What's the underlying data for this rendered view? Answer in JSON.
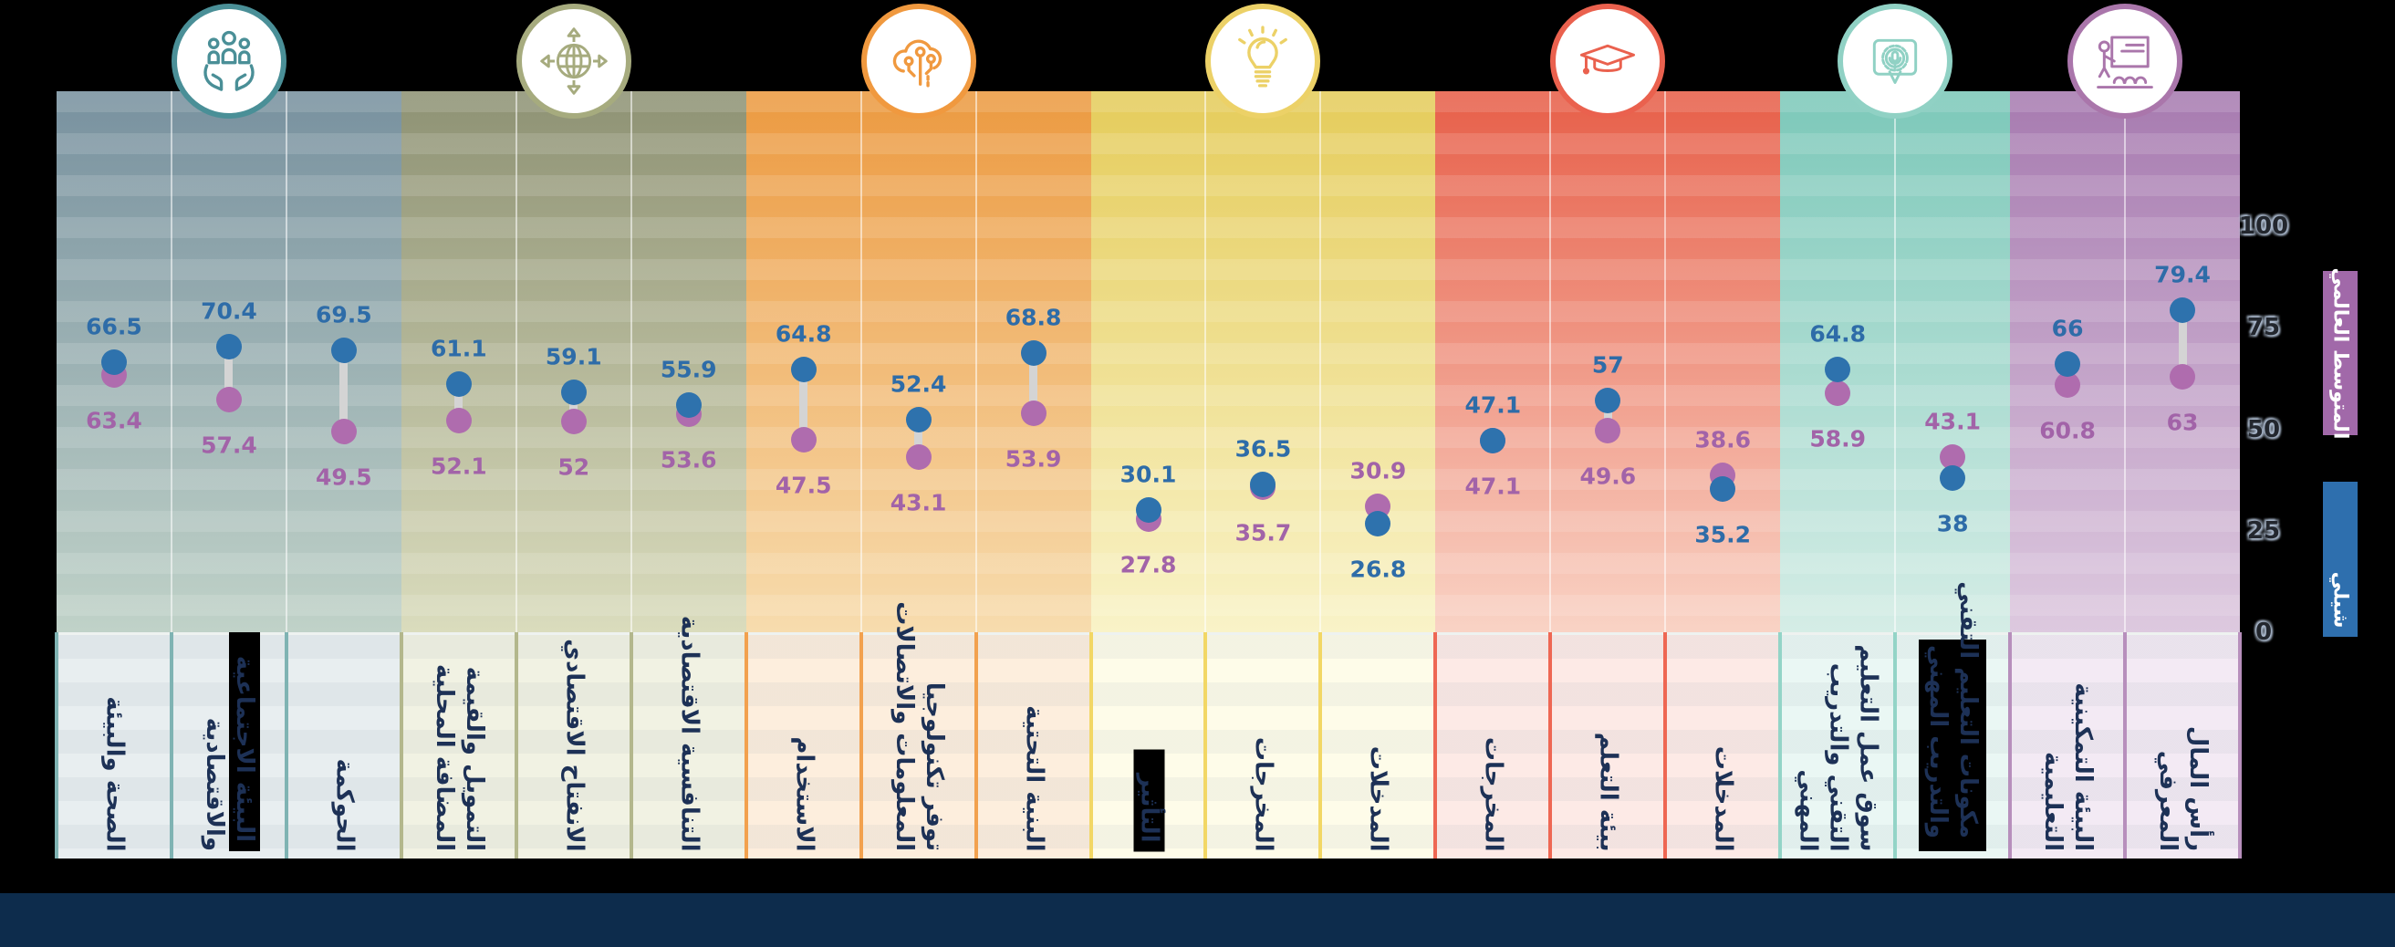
{
  "page": {
    "background_color": "#000000",
    "footer_bar_color": "#0d2c4c"
  },
  "chart_data": {
    "type": "dumbbell-dot-plot",
    "title": "",
    "axis": {
      "min": 0,
      "max": 100,
      "ticks": [
        "100",
        "75",
        "50",
        "25",
        "0"
      ],
      "tick_values": [
        100,
        75,
        50,
        25,
        0
      ],
      "position": "right"
    },
    "legend": [
      {
        "label": "المتوسط العالمي",
        "series": "world",
        "color": "#a169a9"
      },
      {
        "label": "شيلي",
        "series": "country",
        "color": "#2e6fae"
      }
    ],
    "series_colors": {
      "country": "#2e72ad",
      "world": "#af6cae"
    },
    "value_label_colors": {
      "country": "#2e6ca8",
      "world": "#a263a8"
    },
    "connector_color": "#d4d4d4",
    "groups": [
      {
        "icon": "hands-holding-people-icon",
        "accent": "#4a8f97",
        "plot_top": "#78919f",
        "plot_bottom": "#c0d2c8",
        "label_bg": "#e8eef0",
        "sep": "#7fb3b3",
        "pillars": [
          {
            "label": [
              "الصحة والبيئة"
            ],
            "country": 66.5,
            "world": 63.4,
            "country_text": "66.5",
            "world_text": "63.4"
          },
          {
            "label": [
              "البيئة الاجتماعية",
              "والاقتصادية"
            ],
            "country": 70.4,
            "world": 57.4,
            "country_text": "70.4",
            "world_text": "57.4",
            "highlight": "line1"
          },
          {
            "label": [
              "الحوكمة"
            ],
            "country": 69.5,
            "world": 49.5,
            "country_text": "69.5",
            "world_text": "49.5"
          }
        ]
      },
      {
        "icon": "globe-arrows-icon",
        "accent": "#a6ab7e",
        "plot_top": "#8e9274",
        "plot_bottom": "#dadcbd",
        "label_bg": "#f1f2e3",
        "sep": "#b3b78c",
        "pillars": [
          {
            "label": [
              "التمويل والقيمة",
              "المضافة المحلية"
            ],
            "country": 61.1,
            "world": 52.1,
            "country_text": "61.1",
            "world_text": "52.1"
          },
          {
            "label": [
              "الانفتاح الاقتصادي"
            ],
            "country": 59.1,
            "world": 52,
            "country_text": "59.1",
            "world_text": "52"
          },
          {
            "label": [
              "التنافسية الاقتصادية"
            ],
            "country": 55.9,
            "world": 53.6,
            "country_text": "55.9",
            "world_text": "53.6"
          }
        ]
      },
      {
        "icon": "circuit-cloud-icon",
        "accent": "#f0993f",
        "plot_top": "#ec9a41",
        "plot_bottom": "#f7dcae",
        "label_bg": "#fdeedd",
        "sep": "#f2a14e",
        "pillars": [
          {
            "label": [
              "الاستخدام"
            ],
            "country": 64.8,
            "world": 47.5,
            "country_text": "64.8",
            "world_text": "47.5"
          },
          {
            "label": [
              "توفر تكنولوجيا",
              "المعلومات والاتصالات"
            ],
            "country": 52.4,
            "world": 43.1,
            "country_text": "52.4",
            "world_text": "43.1"
          },
          {
            "label": [
              "البنية التحتية"
            ],
            "country": 68.8,
            "world": 53.9,
            "country_text": "68.8",
            "world_text": "53.9"
          }
        ]
      },
      {
        "icon": "lightbulb-icon",
        "accent": "#ecd167",
        "plot_top": "#e5cc5b",
        "plot_bottom": "#f9f3c8",
        "label_bg": "#fefce9",
        "sep": "#f2d765",
        "pillars": [
          {
            "label": [
              "التأثير"
            ],
            "country": 30.1,
            "world": 27.8,
            "country_text": "30.1",
            "world_text": "27.8",
            "highlight": "line1"
          },
          {
            "label": [
              "المخرجات"
            ],
            "country": 36.5,
            "world": 35.7,
            "country_text": "36.5",
            "world_text": "35.7"
          },
          {
            "label": [
              "المدخلات"
            ],
            "country": 26.8,
            "world": 30.9,
            "country_text": "26.8",
            "world_text": "30.9"
          }
        ]
      },
      {
        "icon": "graduation-cap-icon",
        "accent": "#ea614e",
        "plot_top": "#e75f49",
        "plot_bottom": "#f9d3c5",
        "label_bg": "#fdeae6",
        "sep": "#ee6753",
        "pillars": [
          {
            "label": [
              "المخرجات"
            ],
            "country": 47.1,
            "world": 47.1,
            "country_text": "47.1",
            "world_text": "47.1"
          },
          {
            "label": [
              "بيئة التعلم"
            ],
            "country": 57,
            "world": 49.6,
            "country_text": "57",
            "world_text": "49.6"
          },
          {
            "label": [
              "المدخلات"
            ],
            "country": 35.2,
            "world": 38.6,
            "country_text": "35.2",
            "world_text": "38.6"
          }
        ]
      },
      {
        "icon": "certificate-icon",
        "accent": "#90d1c4",
        "plot_top": "#7cc8b9",
        "plot_bottom": "#d5ede6",
        "label_bg": "#eaf7f4",
        "sep": "#93d4c7",
        "pillars": [
          {
            "label": [
              "سوق عمل التعليم",
              "التقني والتدريب",
              "المهني"
            ],
            "country": 64.8,
            "world": 58.9,
            "country_text": "64.8",
            "world_text": "58.9"
          },
          {
            "label": [
              "مكونات التعليم التقني",
              "والتدريب المهني"
            ],
            "country": 38,
            "world": 43.1,
            "country_text": "38",
            "world_text": "43.1",
            "highlight": "all"
          }
        ]
      },
      {
        "icon": "teacher-presentation-icon",
        "accent": "#aa76ab",
        "plot_top": "#a77bb0",
        "plot_bottom": "#ddc9df",
        "label_bg": "#f3eaf4",
        "sep": "#b78fbc",
        "pillars": [
          {
            "label": [
              "البيئة التمكينية",
              "التعليمية"
            ],
            "country": 66,
            "world": 60.8,
            "country_text": "66",
            "world_text": "60.8"
          },
          {
            "label": [
              "رأس المال",
              "المعرفي"
            ],
            "country": 79.4,
            "world": 63,
            "country_text": "79.4",
            "world_text": "63"
          }
        ]
      }
    ]
  }
}
